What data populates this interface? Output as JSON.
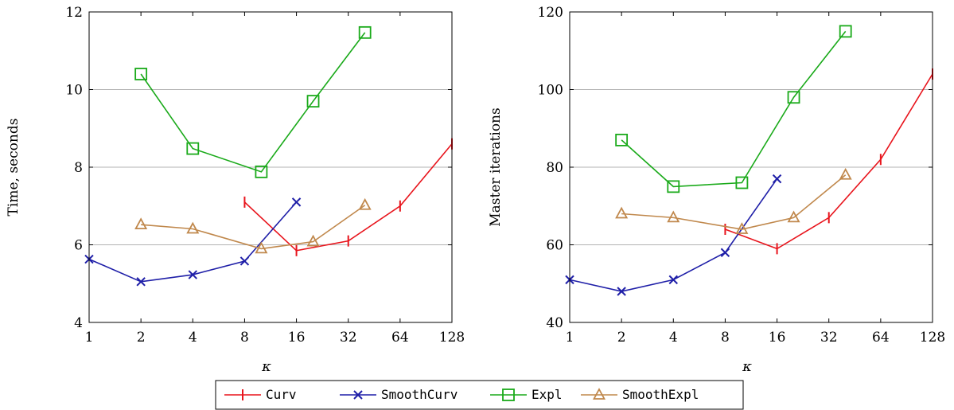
{
  "chart_data": [
    {
      "type": "line",
      "title": "",
      "xlabel": "κ",
      "ylabel": "Time, seconds",
      "xscale": "log2",
      "xlim": [
        1,
        128
      ],
      "ylim": [
        4,
        12
      ],
      "xticks": [
        1,
        2,
        4,
        8,
        16,
        32,
        64,
        128
      ],
      "xtick_labels": [
        "1",
        "2",
        "4",
        "8",
        "16",
        "32",
        "64",
        "128"
      ],
      "yticks": [
        4,
        6,
        8,
        10,
        12
      ],
      "ytick_labels": [
        "4",
        "6",
        "8",
        "10",
        "12"
      ],
      "grid": "horizontal",
      "series": [
        {
          "name": "Curv",
          "color": "#e8141c",
          "marker": "vbar",
          "x": [
            8,
            16,
            32,
            64,
            128
          ],
          "y": [
            7.1,
            5.85,
            6.1,
            7.0,
            8.6
          ]
        },
        {
          "name": "SmoothCurv",
          "color": "#1f1fa8",
          "marker": "cross",
          "x": [
            1,
            2,
            4,
            8,
            16
          ],
          "y": [
            5.63,
            5.05,
            5.23,
            5.58,
            7.1
          ]
        },
        {
          "name": "Expl",
          "color": "#1aaa1a",
          "marker": "square",
          "x": [
            2,
            4,
            10,
            20,
            40
          ],
          "y": [
            10.4,
            8.48,
            7.88,
            9.7,
            11.47
          ]
        },
        {
          "name": "SmoothExpl",
          "color": "#c0884c",
          "marker": "triangle",
          "x": [
            2,
            4,
            10,
            20,
            40
          ],
          "y": [
            6.52,
            6.41,
            5.9,
            6.08,
            7.02
          ]
        }
      ]
    },
    {
      "type": "line",
      "title": "",
      "xlabel": "κ",
      "ylabel": "Master iterations",
      "xscale": "log2",
      "xlim": [
        1,
        128
      ],
      "ylim": [
        40,
        120
      ],
      "xticks": [
        1,
        2,
        4,
        8,
        16,
        32,
        64,
        128
      ],
      "xtick_labels": [
        "1",
        "2",
        "4",
        "8",
        "16",
        "32",
        "64",
        "128"
      ],
      "yticks": [
        40,
        60,
        80,
        100,
        120
      ],
      "ytick_labels": [
        "40",
        "60",
        "80",
        "100",
        "120"
      ],
      "grid": "horizontal",
      "series": [
        {
          "name": "Curv",
          "color": "#e8141c",
          "marker": "vbar",
          "x": [
            8,
            16,
            32,
            64,
            128
          ],
          "y": [
            64,
            59,
            67,
            82,
            104
          ]
        },
        {
          "name": "SmoothCurv",
          "color": "#1f1fa8",
          "marker": "cross",
          "x": [
            1,
            2,
            4,
            8,
            16
          ],
          "y": [
            51,
            48,
            51,
            58,
            77
          ]
        },
        {
          "name": "Expl",
          "color": "#1aaa1a",
          "marker": "square",
          "x": [
            2,
            4,
            10,
            20,
            40
          ],
          "y": [
            87,
            75,
            76,
            98,
            115
          ]
        },
        {
          "name": "SmoothExpl",
          "color": "#c0884c",
          "marker": "triangle",
          "x": [
            2,
            4,
            10,
            20,
            40
          ],
          "y": [
            68,
            67,
            64,
            67,
            78
          ]
        }
      ]
    }
  ],
  "legend": {
    "position": "bottom-center",
    "entries": [
      "Curv",
      "SmoothCurv",
      "Expl",
      "SmoothExpl"
    ]
  }
}
